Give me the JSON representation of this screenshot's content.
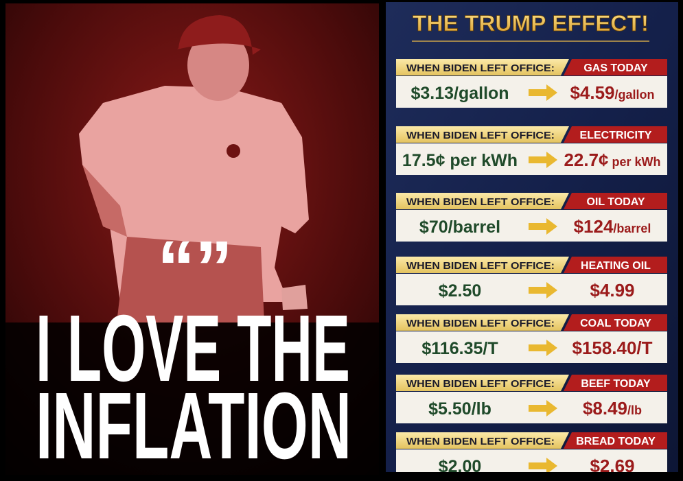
{
  "poster": {
    "quote_marks": "“”",
    "headline": [
      "I LOVE THE",
      "INFLATION"
    ]
  },
  "panel": {
    "title": "THE TRUMP EFFECT!",
    "rows": [
      {
        "label_left": "WHEN BIDEN LEFT OFFICE:",
        "label_right": "GAS TODAY",
        "before": "$3.13/gallon",
        "after": "$4.59",
        "after_unit": "/gallon"
      },
      {
        "label_left": "WHEN BIDEN LEFT OFFICE:",
        "label_right": "ELECTRICITY",
        "before": "17.5¢ per kWh",
        "after": "22.7¢",
        "after_unit": " per kWh"
      },
      {
        "label_left": "WHEN BIDEN LEFT OFFICE:",
        "label_right": "OIL TODAY",
        "before": "$70/barrel",
        "after": "$124",
        "after_unit": "/barrel"
      },
      {
        "label_left": "WHEN BIDEN LEFT OFFICE:",
        "label_right": "HEATING OIL",
        "before": "$2.50",
        "after": "$4.99"
      },
      {
        "label_left": "WHEN BIDEN LEFT OFFICE:",
        "label_right": "COAL TODAY",
        "before": "$116.35/T",
        "after": "$158.40/T"
      },
      {
        "label_left": "WHEN BIDEN LEFT OFFICE:",
        "label_right": "BEEF TODAY",
        "before": "$5.50/lb",
        "after": "$8.49",
        "after_unit": "/lb"
      },
      {
        "label_left": "WHEN BIDEN LEFT OFFICE:",
        "label_right": "BREAD TODAY",
        "before": "$2.00",
        "after": "$2.69"
      }
    ]
  }
}
